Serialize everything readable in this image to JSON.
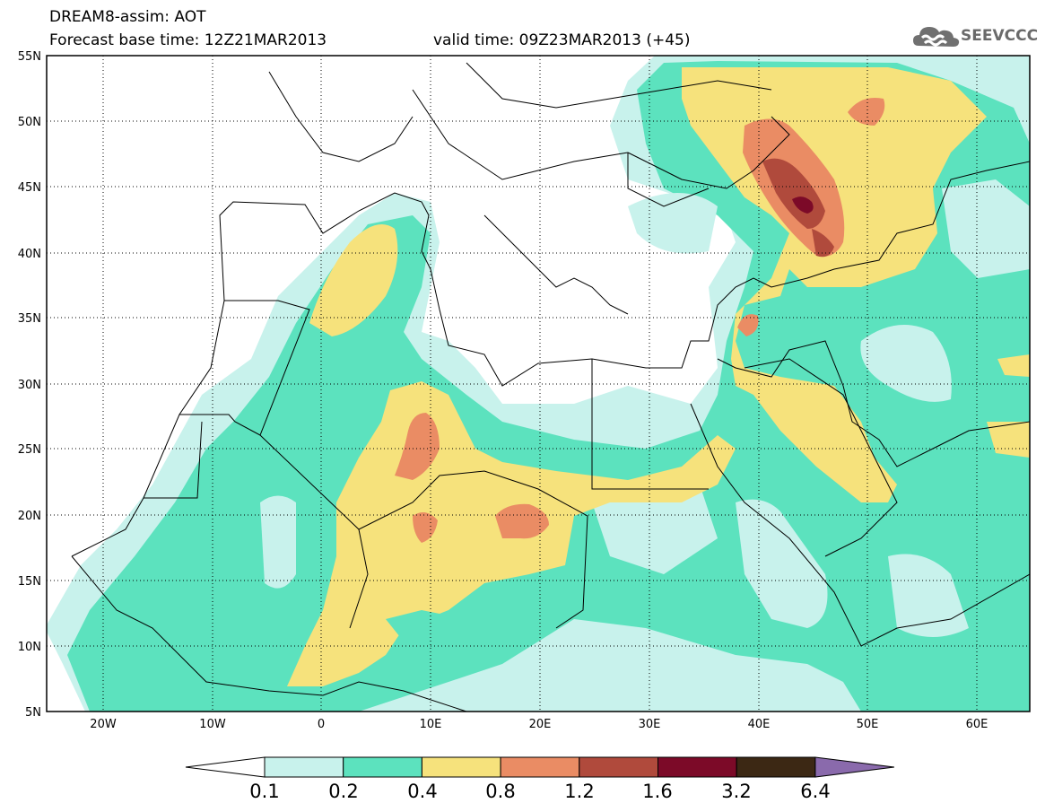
{
  "header": {
    "model": "DREAM8-assim: AOT",
    "base_time": "Forecast base time: 12Z21MAR2013",
    "valid_time": "valid time: 09Z23MAR2013 (+45)"
  },
  "logo": {
    "text": "SEEVCCC",
    "icon": "cloud-icon"
  },
  "map": {
    "lon_ticks": [
      "20W",
      "10W",
      "0",
      "10E",
      "20E",
      "30E",
      "40E",
      "50E",
      "60E"
    ],
    "lat_ticks": [
      "55N",
      "50N",
      "45N",
      "40N",
      "35N",
      "30N",
      "25N",
      "20N",
      "15N",
      "10N",
      "5N"
    ],
    "lon_range": [
      -25,
      65
    ],
    "lat_range": [
      5,
      55
    ],
    "grid": "dotted"
  },
  "colorbar": {
    "labels": [
      "0.1",
      "0.2",
      "0.4",
      "0.8",
      "1.2",
      "1.6",
      "3.2",
      "6.4"
    ],
    "colors": [
      "#ffffff",
      "#c8f2ec",
      "#5ce2be",
      "#f6e27c",
      "#ea8c64",
      "#b04a3c",
      "#7c0a28",
      "#3c2814",
      "#8a6aac"
    ]
  }
}
